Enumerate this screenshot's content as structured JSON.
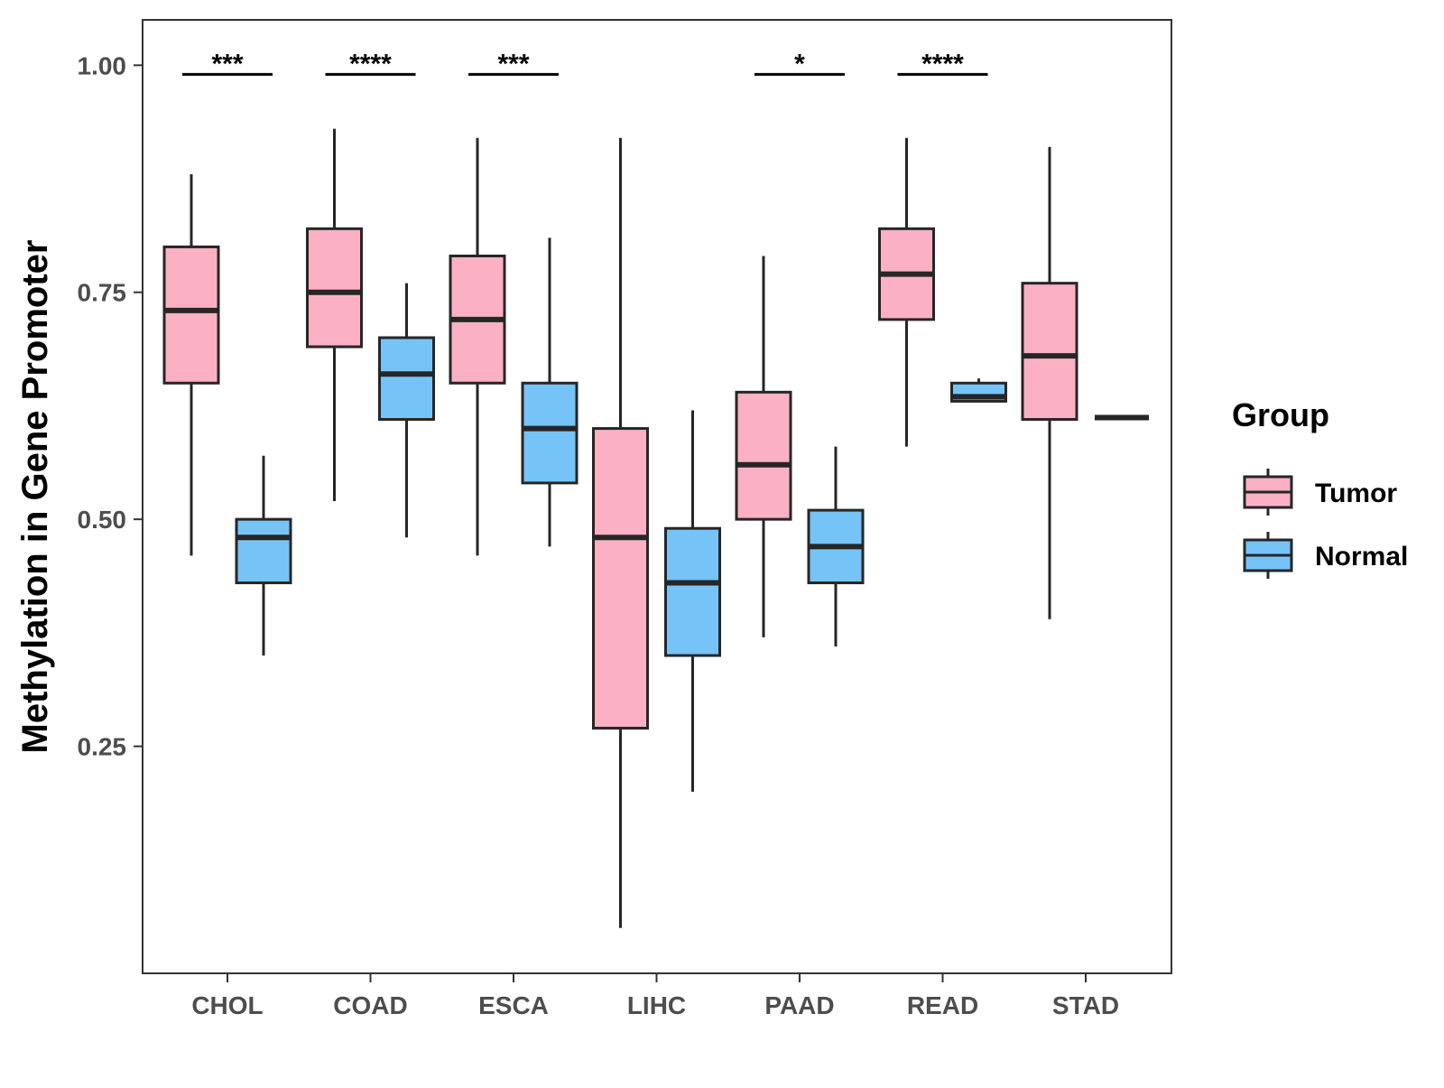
{
  "chart_data": {
    "type": "boxplot",
    "title": "",
    "xlabel": "",
    "ylabel": "Methylation in Gene Promoter",
    "ylim": [
      0.0,
      1.05
    ],
    "yticks": [
      "0.25",
      "0.50",
      "0.75",
      "1.00"
    ],
    "ytick_values": [
      0.25,
      0.5,
      0.75,
      1.0
    ],
    "grid": false,
    "categories": [
      "CHOL",
      "COAD",
      "ESCA",
      "LIHC",
      "PAAD",
      "READ",
      "STAD"
    ],
    "legend": {
      "title": "Group",
      "position": "right",
      "entries": [
        {
          "name": "Tumor",
          "color": "#FBB1C3"
        },
        {
          "name": "Normal",
          "color": "#76C3F8"
        }
      ]
    },
    "series": [
      {
        "name": "Tumor",
        "color": "#FBB1C3",
        "boxes": [
          {
            "category": "CHOL",
            "whisker_low": 0.46,
            "q1": 0.65,
            "median": 0.73,
            "q3": 0.8,
            "whisker_high": 0.88
          },
          {
            "category": "COAD",
            "whisker_low": 0.52,
            "q1": 0.69,
            "median": 0.75,
            "q3": 0.82,
            "whisker_high": 0.93
          },
          {
            "category": "ESCA",
            "whisker_low": 0.46,
            "q1": 0.65,
            "median": 0.72,
            "q3": 0.79,
            "whisker_high": 0.92
          },
          {
            "category": "LIHC",
            "whisker_low": 0.05,
            "q1": 0.27,
            "median": 0.48,
            "q3": 0.6,
            "whisker_high": 0.92
          },
          {
            "category": "PAAD",
            "whisker_low": 0.37,
            "q1": 0.5,
            "median": 0.56,
            "q3": 0.64,
            "whisker_high": 0.79
          },
          {
            "category": "READ",
            "whisker_low": 0.58,
            "q1": 0.72,
            "median": 0.77,
            "q3": 0.82,
            "whisker_high": 0.92
          },
          {
            "category": "STAD",
            "whisker_low": 0.39,
            "q1": 0.61,
            "median": 0.68,
            "q3": 0.76,
            "whisker_high": 0.91
          }
        ]
      },
      {
        "name": "Normal",
        "color": "#76C3F8",
        "boxes": [
          {
            "category": "CHOL",
            "whisker_low": 0.35,
            "q1": 0.43,
            "median": 0.48,
            "q3": 0.5,
            "whisker_high": 0.57
          },
          {
            "category": "COAD",
            "whisker_low": 0.48,
            "q1": 0.61,
            "median": 0.66,
            "q3": 0.7,
            "whisker_high": 0.76
          },
          {
            "category": "ESCA",
            "whisker_low": 0.47,
            "q1": 0.54,
            "median": 0.6,
            "q3": 0.65,
            "whisker_high": 0.81
          },
          {
            "category": "LIHC",
            "whisker_low": 0.2,
            "q1": 0.35,
            "median": 0.43,
            "q3": 0.49,
            "whisker_high": 0.62
          },
          {
            "category": "PAAD",
            "whisker_low": 0.36,
            "q1": 0.43,
            "median": 0.47,
            "q3": 0.51,
            "whisker_high": 0.58
          },
          {
            "category": "READ",
            "whisker_low": 0.63,
            "q1": 0.63,
            "median": 0.635,
            "q3": 0.65,
            "whisker_high": 0.655
          },
          {
            "category": "STAD",
            "whisker_low": 0.612,
            "q1": 0.612,
            "median": 0.612,
            "q3": 0.612,
            "whisker_high": 0.612
          }
        ]
      }
    ],
    "significance": [
      {
        "category": "CHOL",
        "label": "***"
      },
      {
        "category": "COAD",
        "label": "****"
      },
      {
        "category": "ESCA",
        "label": "***"
      },
      {
        "category": "PAAD",
        "label": "*"
      },
      {
        "category": "READ",
        "label": "****"
      }
    ],
    "significance_level": 0.99
  }
}
